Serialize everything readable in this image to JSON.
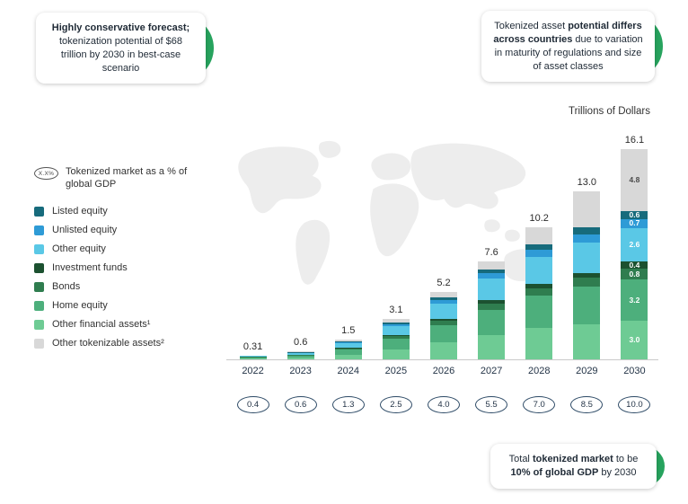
{
  "colors": {
    "accent_green": "#27a35e",
    "axis_line": "#c9c9c9",
    "badge_border": "#2d4a66",
    "text_dark": "#243447"
  },
  "callouts": {
    "top_left": {
      "bold": "Highly conservative forecast;",
      "regular": " tokenization potential of $68 trillion by 2030 in best-case scenario"
    },
    "top_right": {
      "part1": "Tokenized asset ",
      "part2_bold": "potential differs across countries",
      "part3": " due to variation in maturity of regulations and size of asset classes"
    },
    "bottom_right": {
      "part1": "Total ",
      "part2_bold": "tokenized market",
      "part3": " to be ",
      "part4_bold": "10% of global GDP",
      "part5": " by 2030"
    }
  },
  "axis_title": "Trillions of Dollars",
  "legend": {
    "gdp_icon_label": "X.X%",
    "gdp_label": "Tokenized market as a % of global GDP",
    "items": [
      {
        "label": "Listed equity",
        "color": "#176b7c"
      },
      {
        "label": "Unlisted equity",
        "color": "#2e9bd6"
      },
      {
        "label": "Other equity",
        "color": "#5ac8e6"
      },
      {
        "label": "Investment funds",
        "color": "#1c5130"
      },
      {
        "label": "Bonds",
        "color": "#2f7d4f"
      },
      {
        "label": "Home equity",
        "color": "#4daf7c"
      },
      {
        "label": "Other financial assets¹",
        "color": "#6ecb94"
      },
      {
        "label": "Other tokenizable assets²",
        "color": "#d8d8d8"
      }
    ]
  },
  "chart_data": {
    "type": "bar",
    "stacked": true,
    "ylabel": "Trillions of Dollars",
    "categories": [
      "2022",
      "2023",
      "2024",
      "2025",
      "2026",
      "2027",
      "2028",
      "2029",
      "2030"
    ],
    "totals": [
      0.31,
      0.6,
      1.5,
      3.1,
      5.2,
      7.6,
      10.2,
      13.0,
      16.1
    ],
    "total_labels": [
      "0.31",
      "0.6",
      "1.5",
      "3.1",
      "5.2",
      "7.6",
      "10.2",
      "13.0",
      "16.1"
    ],
    "gdp_percent_labels": [
      "0.4",
      "0.6",
      "1.3",
      "2.5",
      "4.0",
      "5.5",
      "7.0",
      "8.5",
      "10.0"
    ],
    "series": [
      {
        "name": "Other financial assets¹",
        "color": "#6ecb94",
        "label_color": "#ffffff",
        "values": [
          0.08,
          0.15,
          0.38,
          0.78,
          1.3,
          1.9,
          2.4,
          2.7,
          3.0
        ]
      },
      {
        "name": "Home equity",
        "color": "#4daf7c",
        "label_color": "#ffffff",
        "values": [
          0.08,
          0.15,
          0.38,
          0.8,
          1.35,
          1.95,
          2.5,
          2.9,
          3.2
        ]
      },
      {
        "name": "Bonds",
        "color": "#2f7d4f",
        "label_color": "#ffffff",
        "values": [
          0.02,
          0.04,
          0.1,
          0.2,
          0.33,
          0.48,
          0.62,
          0.72,
          0.8
        ]
      },
      {
        "name": "Investment funds",
        "color": "#1c5130",
        "label_color": "#ffffff",
        "values": [
          0.01,
          0.02,
          0.05,
          0.1,
          0.17,
          0.24,
          0.31,
          0.36,
          0.4
        ]
      },
      {
        "name": "Other equity",
        "color": "#5ac8e6",
        "label_color": "#ffffff",
        "values": [
          0.07,
          0.13,
          0.33,
          0.68,
          1.14,
          1.66,
          2.1,
          2.35,
          2.6
        ]
      },
      {
        "name": "Unlisted equity",
        "color": "#2e9bd6",
        "label_color": "#ffffff",
        "values": [
          0.02,
          0.03,
          0.08,
          0.17,
          0.28,
          0.41,
          0.52,
          0.62,
          0.7
        ]
      },
      {
        "name": "Listed equity",
        "color": "#176b7c",
        "label_color": "#ffffff",
        "values": [
          0.01,
          0.03,
          0.06,
          0.13,
          0.23,
          0.32,
          0.45,
          0.55,
          0.6
        ]
      },
      {
        "name": "Other tokenizable assets²",
        "color": "#d8d8d8",
        "label_color": "#4a4a4a",
        "values": [
          0.02,
          0.05,
          0.12,
          0.24,
          0.4,
          0.64,
          1.3,
          2.8,
          4.8
        ]
      }
    ],
    "segment_labels_shown_for": "2030",
    "segment_labels_2030": {
      "Other financial assets¹": "3.0",
      "Home equity": "3.2",
      "Bonds": "0.8",
      "Investment funds": "0.4",
      "Other equity": "2.6",
      "Unlisted equity": "0.7",
      "Listed equity": "0.6",
      "Other tokenizable assets²": "4.8"
    },
    "ylim": [
      0,
      17
    ],
    "grid": false,
    "legend_position": "left"
  }
}
